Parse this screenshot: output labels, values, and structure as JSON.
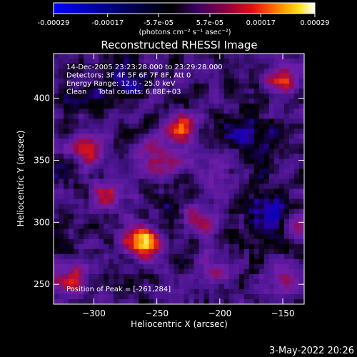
{
  "colorbar": {
    "tick_labels": [
      "-0.00029",
      "-0.00017",
      "-5.7e-05",
      "5.7e-05",
      "0.00017",
      "0.00029"
    ],
    "tick_values": [
      -0.00029,
      -0.00017,
      -5.7e-05,
      5.7e-05,
      0.00017,
      0.00029
    ],
    "range": [
      -0.00029,
      0.00029
    ],
    "unit_label": "(photons cm⁻² s⁻¹ asec⁻²)",
    "colormap": "idl-heat (blue-black-purple-red-orange-yellow-white)"
  },
  "chart_data": {
    "type": "heatmap",
    "title": "Reconstructed RHESSI Image",
    "xlabel": "Heliocentric X (arcsec)",
    "ylabel": "Heliocentric Y (arcsec)",
    "xlim": [
      -332,
      -133
    ],
    "ylim": [
      234,
      436
    ],
    "x_ticks": [
      -300,
      -250,
      -200,
      -150
    ],
    "y_ticks": [
      250,
      300,
      350,
      400
    ],
    "x_tick_labels": [
      "−300",
      "−250",
      "−200",
      "−150"
    ],
    "y_tick_labels": [
      "250",
      "300",
      "350",
      "400"
    ],
    "grid": false,
    "annotations": [
      "14-Dec-2005 23:23:28.000 to 23:29:28.000",
      "Detectors: 3F 4F 5F 6F 7F 8F, Att 0",
      "Energy Range: 12.0 - 25.0 keV",
      "Clean     Total counts: 6.88E+03",
      "Position of Peak = [-261,284]"
    ],
    "peak": {
      "x": -261,
      "y": 284
    }
  },
  "footer": {
    "date": "3-May-2022 20:26"
  }
}
